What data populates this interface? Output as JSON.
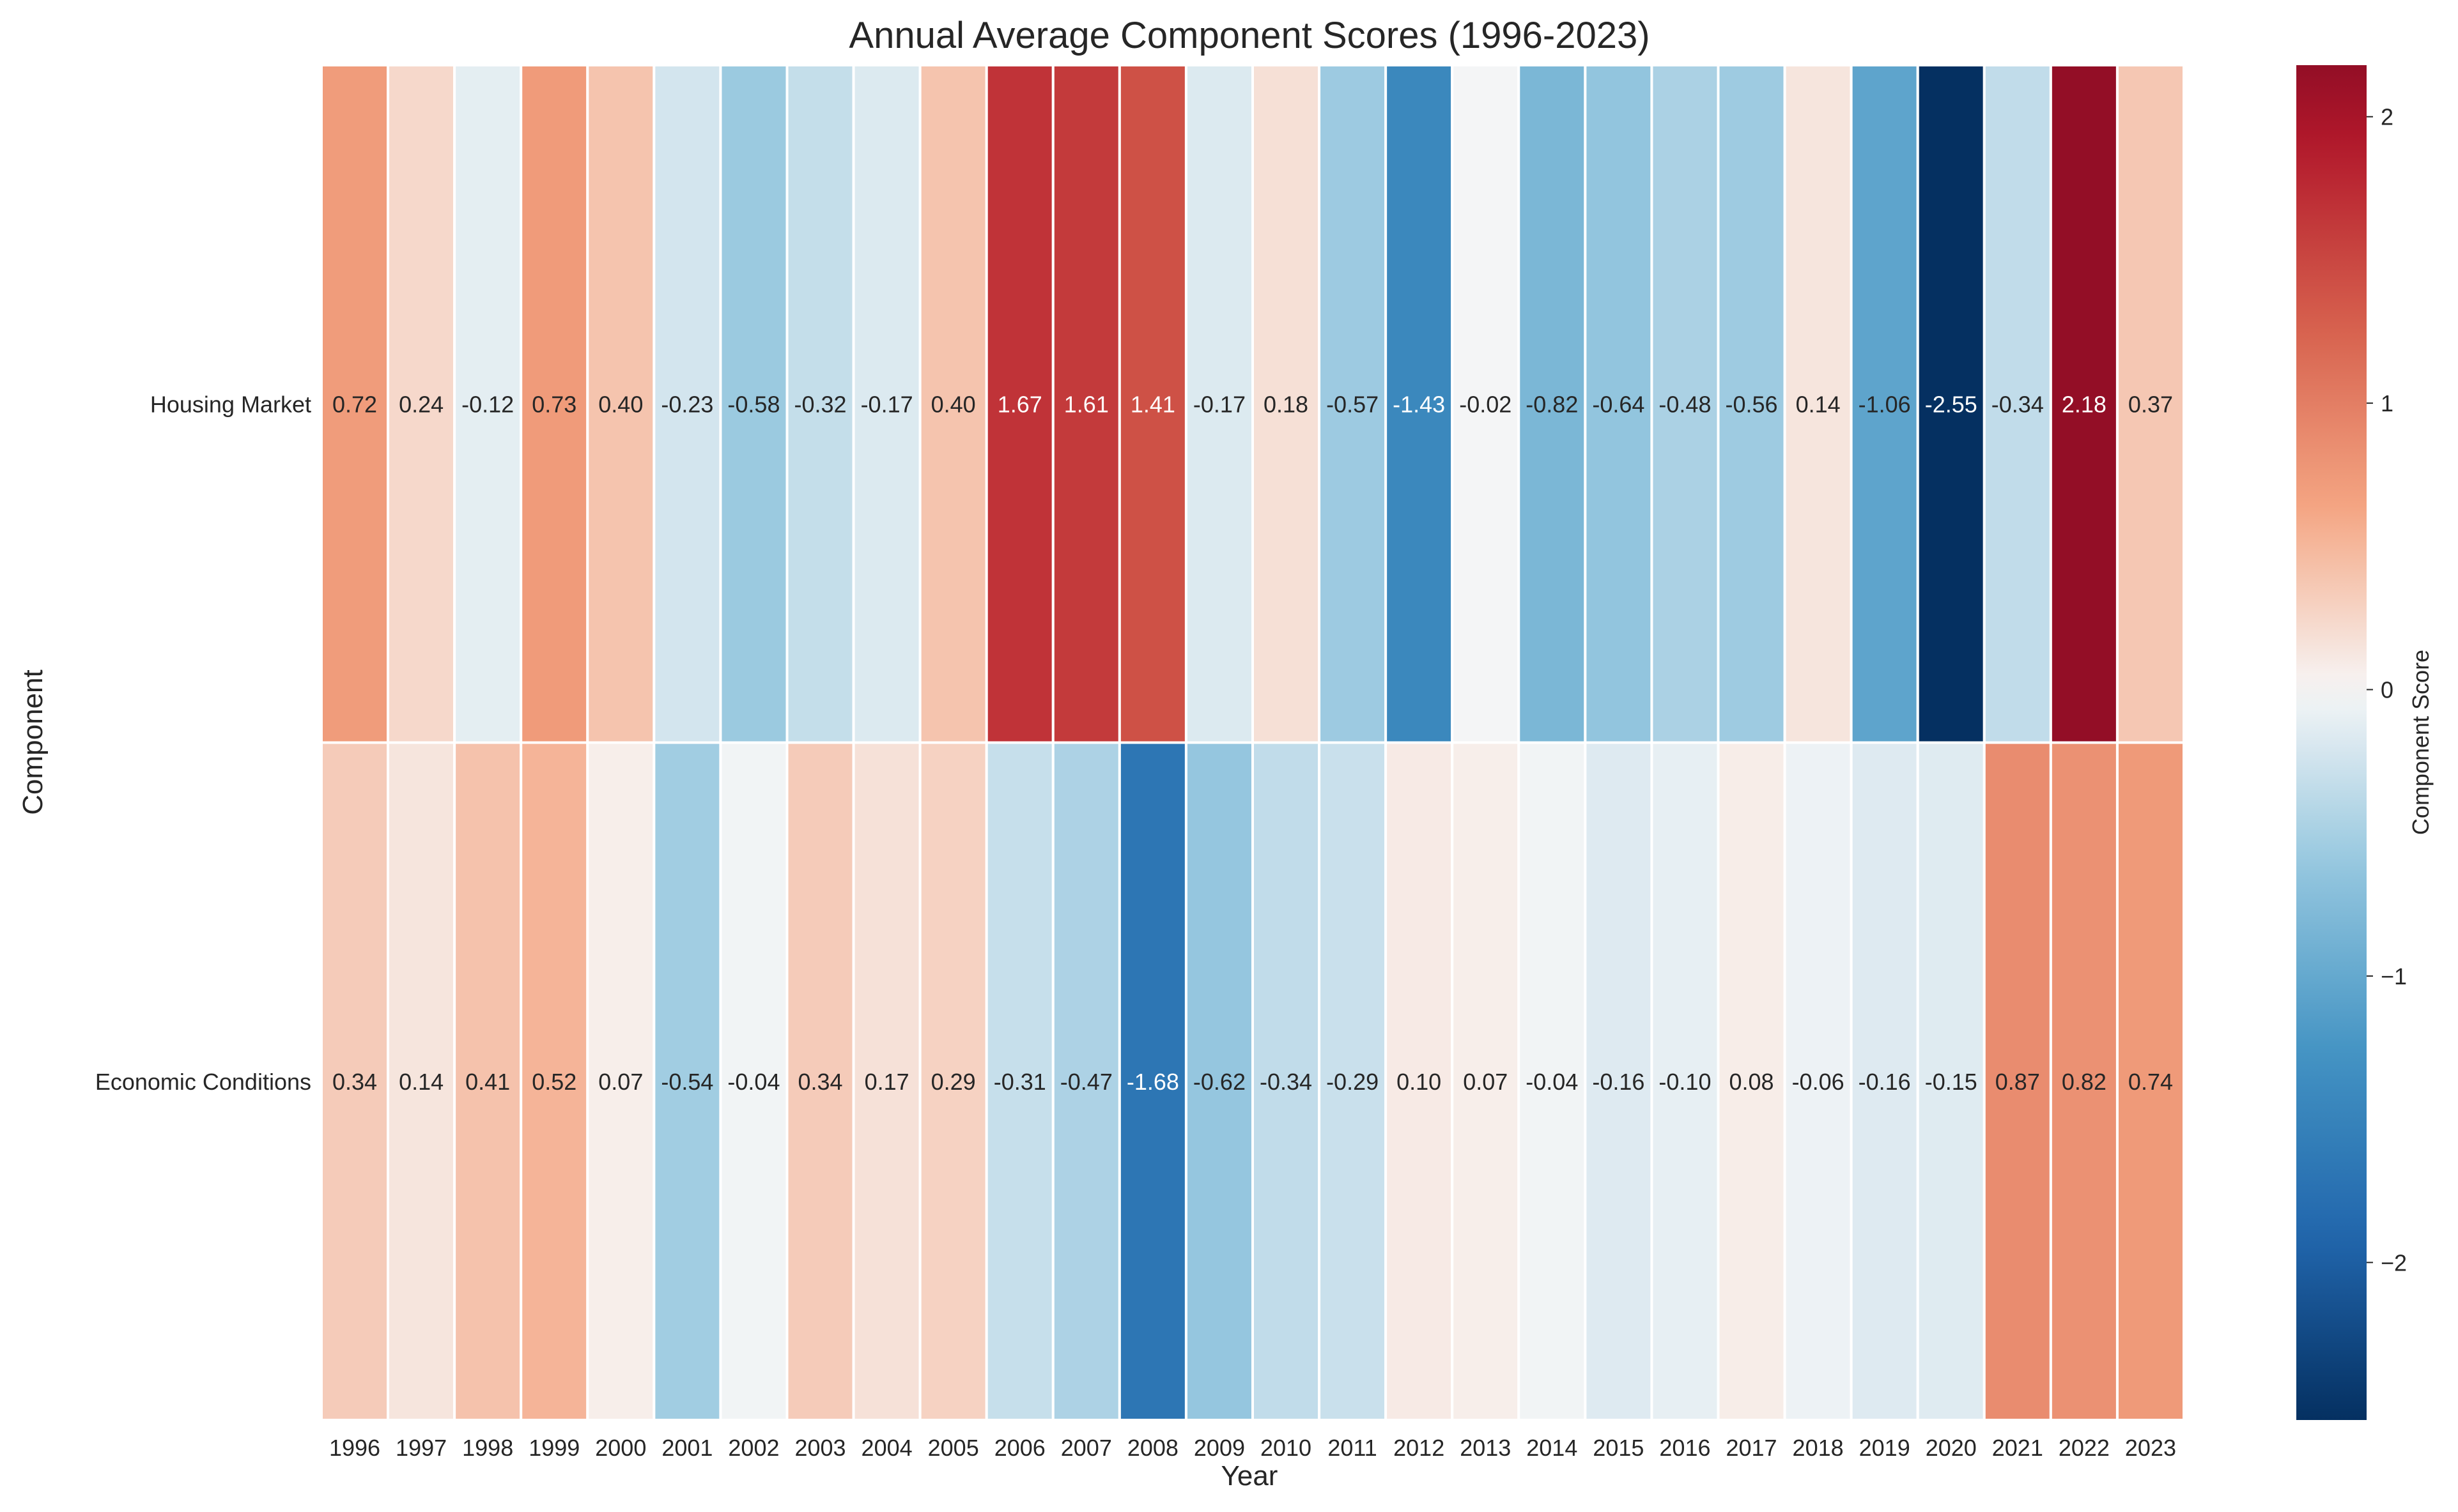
{
  "chart_data": {
    "type": "heatmap",
    "title": "Annual Average Component Scores (1996-2023)",
    "xlabel": "Year",
    "ylabel": "Component",
    "colorbar_label": "Component Score",
    "colormap": "RdBu_r",
    "vmin": -2.55,
    "vmax": 2.18,
    "colorbar_ticks": [
      "2",
      "1",
      "0",
      "−1",
      "−2"
    ],
    "colorbar_tick_values": [
      2,
      1,
      0,
      -1,
      -2
    ],
    "rows": [
      "Housing Market",
      "Economic Conditions"
    ],
    "columns": [
      "1996",
      "1997",
      "1998",
      "1999",
      "2000",
      "2001",
      "2002",
      "2003",
      "2004",
      "2005",
      "2006",
      "2007",
      "2008",
      "2009",
      "2010",
      "2011",
      "2012",
      "2013",
      "2014",
      "2015",
      "2016",
      "2017",
      "2018",
      "2019",
      "2020",
      "2021",
      "2022",
      "2023"
    ],
    "values": [
      [
        0.72,
        0.24,
        -0.12,
        0.73,
        0.4,
        -0.23,
        -0.58,
        -0.32,
        -0.17,
        0.4,
        1.67,
        1.61,
        1.41,
        -0.17,
        0.18,
        -0.57,
        -1.43,
        -0.02,
        -0.82,
        -0.64,
        -0.48,
        -0.56,
        0.14,
        -1.06,
        -2.55,
        -0.34,
        2.18,
        0.37
      ],
      [
        0.34,
        0.14,
        0.41,
        0.52,
        0.07,
        -0.54,
        -0.04,
        0.34,
        0.17,
        0.29,
        -0.31,
        -0.47,
        -1.68,
        -0.62,
        -0.34,
        -0.29,
        0.1,
        0.07,
        -0.04,
        -0.16,
        -0.1,
        0.08,
        -0.06,
        -0.16,
        -0.15,
        0.87,
        0.82,
        0.74
      ]
    ],
    "annotations": "values shown in each cell, 2 decimals"
  }
}
